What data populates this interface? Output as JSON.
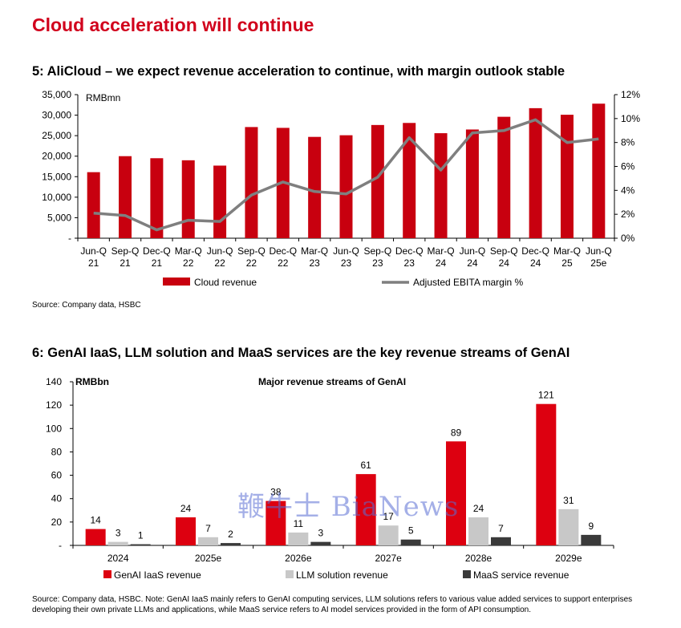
{
  "page_title": "Cloud acceleration will continue",
  "chart_data": [
    {
      "type": "bar",
      "title": "5: AliCloud – we expect revenue acceleration to continue, with margin outlook stable",
      "unit_label": "RMBmn",
      "categories": [
        "Jun-Q 21",
        "Sep-Q 21",
        "Dec-Q 21",
        "Mar-Q 22",
        "Jun-Q 22",
        "Sep-Q 22",
        "Dec-Q 22",
        "Mar-Q 23",
        "Jun-Q 23",
        "Sep-Q 23",
        "Dec-Q 23",
        "Mar-Q 24",
        "Jun-Q 24",
        "Sep-Q 24",
        "Dec-Q 24",
        "Mar-Q 25",
        "Jun-Q 25e"
      ],
      "category_lines": [
        [
          "Jun-Q",
          "21"
        ],
        [
          "Sep-Q",
          "21"
        ],
        [
          "Dec-Q",
          "21"
        ],
        [
          "Mar-Q",
          "22"
        ],
        [
          "Jun-Q",
          "22"
        ],
        [
          "Sep-Q",
          "22"
        ],
        [
          "Dec-Q",
          "22"
        ],
        [
          "Mar-Q",
          "23"
        ],
        [
          "Jun-Q",
          "23"
        ],
        [
          "Sep-Q",
          "23"
        ],
        [
          "Dec-Q",
          "23"
        ],
        [
          "Mar-Q",
          "24"
        ],
        [
          "Jun-Q",
          "24"
        ],
        [
          "Sep-Q",
          "24"
        ],
        [
          "Dec-Q",
          "24"
        ],
        [
          "Mar-Q",
          "25"
        ],
        [
          "Jun-Q",
          "25e"
        ]
      ],
      "series": [
        {
          "name": "Cloud revenue",
          "axis": "left",
          "values": [
            16100,
            20000,
            19500,
            19000,
            17700,
            27100,
            26900,
            24700,
            25100,
            27600,
            28100,
            25600,
            26500,
            29600,
            31700,
            30100,
            32800
          ],
          "color": "#c8000f"
        },
        {
          "name": "Adjusted EBITA margin %",
          "axis": "right",
          "values": [
            2.1,
            1.9,
            0.7,
            1.5,
            1.4,
            3.6,
            4.7,
            3.9,
            3.7,
            5.1,
            8.4,
            5.7,
            8.8,
            9.0,
            9.9,
            8.0,
            8.3
          ],
          "color": "#7f7f7f"
        }
      ],
      "y_left_ticks": [
        "-",
        "5,000",
        "10,000",
        "15,000",
        "20,000",
        "25,000",
        "30,000",
        "35,000"
      ],
      "y_left_range": [
        0,
        35000
      ],
      "y_right_ticks": [
        "0%",
        "2%",
        "4%",
        "6%",
        "8%",
        "10%",
        "12%"
      ],
      "y_right_range": [
        0,
        12
      ],
      "legend": [
        "Cloud revenue",
        "Adjusted EBITA margin %"
      ],
      "legend_position": "bottom",
      "source": "Source: Company data, HSBC"
    },
    {
      "type": "bar",
      "title": "6: GenAI IaaS, LLM solution and MaaS services are the key revenue streams of GenAI",
      "inner_title": "Major revenue streams of GenAI",
      "unit_label": "RMBbn",
      "categories": [
        "2024",
        "2025e",
        "2026e",
        "2027e",
        "2028e",
        "2029e"
      ],
      "series": [
        {
          "name": "GenAI IaaS revenue",
          "values": [
            14,
            24,
            38,
            61,
            89,
            121
          ],
          "color": "#dd0010"
        },
        {
          "name": "LLM solution revenue",
          "values": [
            3,
            7,
            11,
            17,
            24,
            31
          ],
          "color": "#c8c8c8"
        },
        {
          "name": "MaaS service revenue",
          "values": [
            1,
            2,
            3,
            5,
            7,
            9
          ],
          "color": "#3a3a3a"
        }
      ],
      "y_ticks": [
        "-",
        "20",
        "40",
        "60",
        "80",
        "100",
        "120",
        "140"
      ],
      "y_range": [
        0,
        140
      ],
      "legend_position": "bottom",
      "source": "Source: Company data, HSBC. Note: GenAI IaaS mainly refers to GenAI computing services, LLM solutions refers to various value added services to support enterprises developing their own private LLMs and applications, while MaaS service refers to AI model services provided in the form of API consumption."
    }
  ],
  "watermark_text": "鞭牛士 BiaNews"
}
